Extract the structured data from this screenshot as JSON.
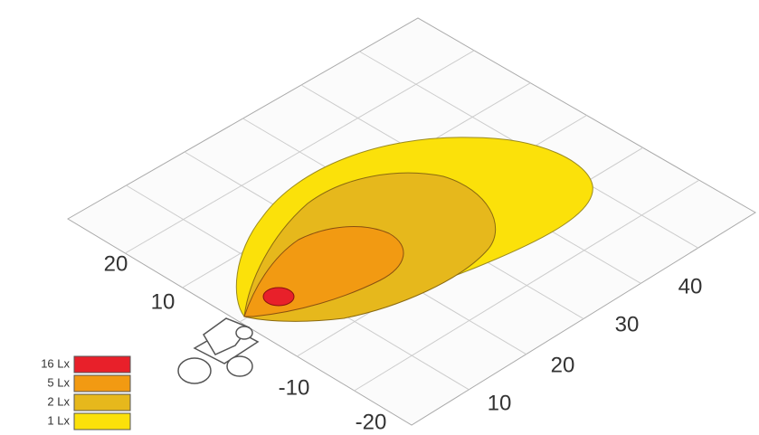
{
  "left_axis": {
    "labels": [
      "20",
      "10",
      "-10",
      "-20"
    ]
  },
  "right_axis": {
    "labels": [
      "10",
      "20",
      "30",
      "40"
    ]
  },
  "legend": {
    "items": [
      {
        "label": "16 Lx",
        "color": "#e8202a"
      },
      {
        "label": "5 Lx",
        "color": "#f29a12"
      },
      {
        "label": "2 Lx",
        "color": "#e6b81c"
      },
      {
        "label": "1 Lx",
        "color": "#fbe10a"
      }
    ]
  }
}
